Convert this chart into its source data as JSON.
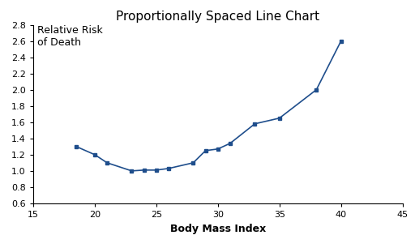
{
  "x": [
    18.5,
    20,
    21,
    23,
    24,
    25,
    26,
    28,
    29,
    30,
    31,
    33,
    35,
    38,
    40
  ],
  "y": [
    1.3,
    1.2,
    1.1,
    1.0,
    1.01,
    1.01,
    1.03,
    1.1,
    1.25,
    1.27,
    1.34,
    1.58,
    1.65,
    2.0,
    2.6
  ],
  "title": "Proportionally Spaced Line Chart",
  "xlabel": "Body Mass Index",
  "ylabel_line1": "Relative Risk",
  "ylabel_line2": "of Death",
  "xlim": [
    15,
    45
  ],
  "ylim": [
    0.6,
    2.8
  ],
  "xticks": [
    15,
    20,
    25,
    30,
    35,
    40,
    45
  ],
  "yticks": [
    0.6,
    0.8,
    1.0,
    1.2,
    1.4,
    1.6,
    1.8,
    2.0,
    2.2,
    2.4,
    2.6,
    2.8
  ],
  "line_color": "#1f4e8c",
  "marker": "s",
  "marker_size": 2.5,
  "line_width": 1.2,
  "bg_color": "#ffffff",
  "title_fontsize": 11,
  "label_fontsize": 9,
  "tick_fontsize": 8,
  "ylabel_fontsize": 9
}
